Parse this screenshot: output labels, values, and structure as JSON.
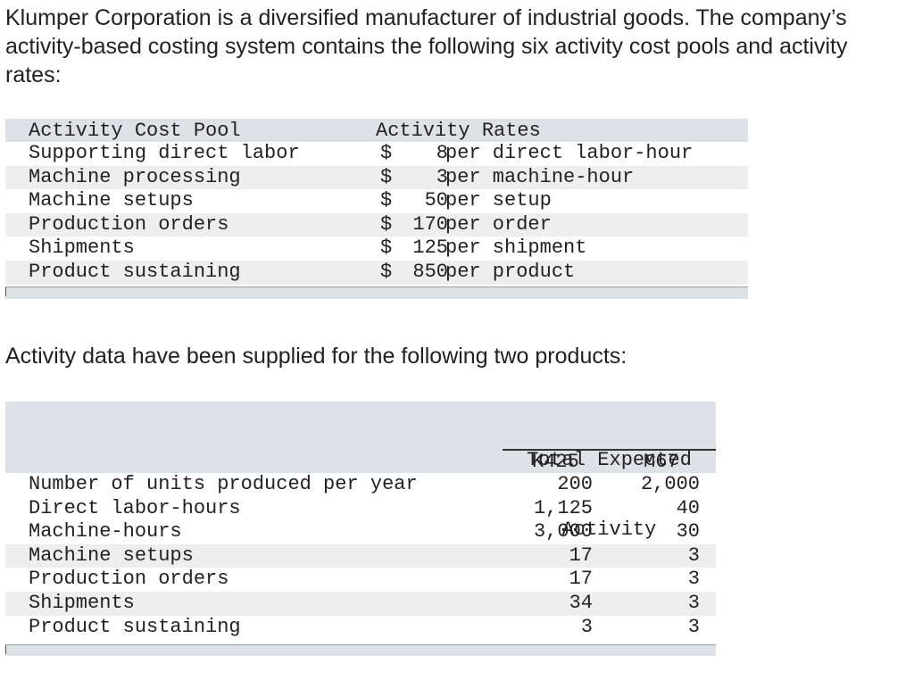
{
  "intro": "Klumper Corporation is a diversified manufacturer of industrial goods. The company’s activity-based costing system contains the following six activity cost pools and activity rates:",
  "table1": {
    "header_pool": "Activity Cost Pool",
    "header_rates": "Activity Rates",
    "rows": [
      {
        "pool": "Supporting direct labor",
        "dollar": "$",
        "amount": "8",
        "unit": "per direct labor-hour"
      },
      {
        "pool": "Machine processing",
        "dollar": "$",
        "amount": "3",
        "unit": "per machine-hour"
      },
      {
        "pool": "Machine setups",
        "dollar": "$",
        "amount": "50",
        "unit": "per setup"
      },
      {
        "pool": "Production orders",
        "dollar": "$",
        "amount": "170",
        "unit": "per order"
      },
      {
        "pool": "Shipments",
        "dollar": "$",
        "amount": "125",
        "unit": "per shipment"
      },
      {
        "pool": "Product sustaining",
        "dollar": "$",
        "amount": "850",
        "unit": "per product"
      }
    ]
  },
  "para2": "Activity data have been supplied for the following two products:",
  "table2": {
    "group_header_line1": "Total Expected",
    "group_header_line2": "Activity",
    "col_k": "K425",
    "col_m": "M67",
    "rows": [
      {
        "label": "Number of units produced per year",
        "k": "200",
        "m": "2,000"
      },
      {
        "label": "Direct labor-hours",
        "k": "1,125",
        "m": "40"
      },
      {
        "label": "Machine-hours",
        "k": "3,000",
        "m": "30"
      },
      {
        "label": "Machine setups",
        "k": "17",
        "m": "3"
      },
      {
        "label": "Production orders",
        "k": "17",
        "m": "3"
      },
      {
        "label": "Shipments",
        "k": "34",
        "m": "3"
      },
      {
        "label": "Product sustaining",
        "k": "3",
        "m": "3"
      }
    ]
  }
}
